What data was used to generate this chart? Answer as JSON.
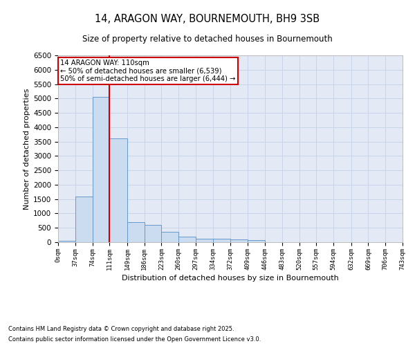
{
  "title_line1": "14, ARAGON WAY, BOURNEMOUTH, BH9 3SB",
  "title_line2": "Size of property relative to detached houses in Bournemouth",
  "xlabel": "Distribution of detached houses by size in Bournemouth",
  "ylabel": "Number of detached properties",
  "footer_line1": "Contains HM Land Registry data © Crown copyright and database right 2025.",
  "footer_line2": "Contains public sector information licensed under the Open Government Licence v3.0.",
  "bar_values": [
    50,
    1600,
    5050,
    3600,
    700,
    600,
    350,
    200,
    130,
    120,
    100,
    70,
    0,
    0,
    0,
    0,
    0,
    0,
    0,
    0
  ],
  "bin_edges": [
    0,
    37,
    74,
    111,
    149,
    186,
    223,
    260,
    297,
    334,
    372,
    409,
    446,
    483,
    520,
    557,
    594,
    632,
    669,
    706,
    743
  ],
  "bar_color": "#ccdcf0",
  "bar_edge_color": "#6699cc",
  "grid_color": "#c8d4e8",
  "bg_color": "#e4eaf5",
  "vline_x": 111,
  "vline_color": "#cc0000",
  "annotation_text": "14 ARAGON WAY: 110sqm\n← 50% of detached houses are smaller (6,539)\n50% of semi-detached houses are larger (6,444) →",
  "annotation_box_color": "#cc0000",
  "ylim": [
    0,
    6500
  ],
  "yticks": [
    0,
    500,
    1000,
    1500,
    2000,
    2500,
    3000,
    3500,
    4000,
    4500,
    5000,
    5500,
    6000,
    6500
  ],
  "tick_labels": [
    "0sqm",
    "37sqm",
    "74sqm",
    "111sqm",
    "149sqm",
    "186sqm",
    "223sqm",
    "260sqm",
    "297sqm",
    "334sqm",
    "372sqm",
    "409sqm",
    "446sqm",
    "483sqm",
    "520sqm",
    "557sqm",
    "594sqm",
    "632sqm",
    "669sqm",
    "706sqm",
    "743sqm"
  ]
}
